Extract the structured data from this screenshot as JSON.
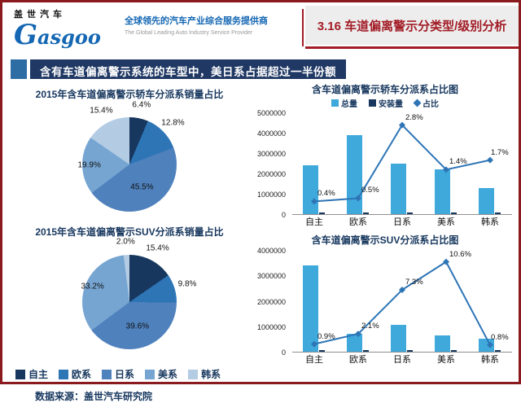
{
  "header": {
    "logo_cn": "盖世汽车",
    "logo_en": "Gasgoo",
    "tagline_cn": "全球领先的汽车产业综合服务提供商",
    "tagline_en": "The Global Leading Auto Industry Service Provider",
    "section_title": "3.16 车道偏离警示分类型/级别分析"
  },
  "headline": "含有车道偏离警示系统的车型中，美日系占据超过一半份额",
  "source": "数据来源：盖世汽车研究院",
  "series": {
    "names": [
      "自主",
      "欧系",
      "日系",
      "美系",
      "韩系"
    ],
    "colors": [
      "#17375E",
      "#2E75B6",
      "#4F81BD",
      "#76A5D2",
      "#B3CCE4"
    ]
  },
  "colors": {
    "bar_total": "#3FA9DC",
    "bar_install": "#17375E",
    "line_ratio": "#2E75B6",
    "accent_red": "#A21C26",
    "navy": "#1F3864"
  },
  "chart_data": [
    {
      "type": "pie",
      "title": "2015年含车道偏离警示轿车分派系销量占比",
      "categories": [
        "自主",
        "欧系",
        "日系",
        "美系",
        "韩系"
      ],
      "values": [
        6.4,
        12.8,
        45.5,
        19.9,
        15.4
      ],
      "unit": "%"
    },
    {
      "type": "pie",
      "title": "2015年含车道偏离警示SUV分派系销量占比",
      "categories": [
        "自主",
        "欧系",
        "日系",
        "美系",
        "韩系"
      ],
      "values": [
        15.4,
        9.8,
        39.6,
        33.2,
        2.0
      ],
      "unit": "%"
    },
    {
      "type": "bar+line",
      "title": "含车道偏离警示轿车分派系占比图",
      "legend": [
        "总量",
        "安装量",
        "占比"
      ],
      "legend_position": "top",
      "categories": [
        "自主",
        "欧系",
        "日系",
        "美系",
        "韩系"
      ],
      "series": [
        {
          "name": "总量",
          "kind": "bar",
          "values": [
            2400000,
            3900000,
            2500000,
            2200000,
            1300000
          ]
        },
        {
          "name": "安装量",
          "kind": "bar",
          "values": [
            10000,
            20000,
            68000,
            31000,
            22000
          ]
        },
        {
          "name": "占比",
          "kind": "line",
          "axis": "secondary",
          "unit": "%",
          "values": [
            0.4,
            0.5,
            2.8,
            1.4,
            1.7
          ]
        }
      ],
      "ylim": [
        0,
        5000000
      ],
      "ytick_step": 1000000,
      "y2lim": [
        0,
        3.2
      ],
      "grid": false
    },
    {
      "type": "bar+line",
      "title": "含车道偏离警示SUV分派系占比图",
      "legend": [],
      "categories": [
        "自主",
        "欧系",
        "日系",
        "美系",
        "韩系"
      ],
      "series": [
        {
          "name": "总量",
          "kind": "bar",
          "values": [
            3400000,
            700000,
            1050000,
            650000,
            500000
          ]
        },
        {
          "name": "安装量",
          "kind": "bar",
          "values": [
            31000,
            15000,
            77000,
            69000,
            4000
          ]
        },
        {
          "name": "占比",
          "kind": "line",
          "axis": "secondary",
          "unit": "%",
          "values": [
            0.9,
            2.1,
            7.3,
            10.6,
            0.8
          ]
        }
      ],
      "ylim": [
        0,
        4000000
      ],
      "ytick_step": 1000000,
      "y2lim": [
        0,
        12
      ],
      "grid": false
    }
  ]
}
